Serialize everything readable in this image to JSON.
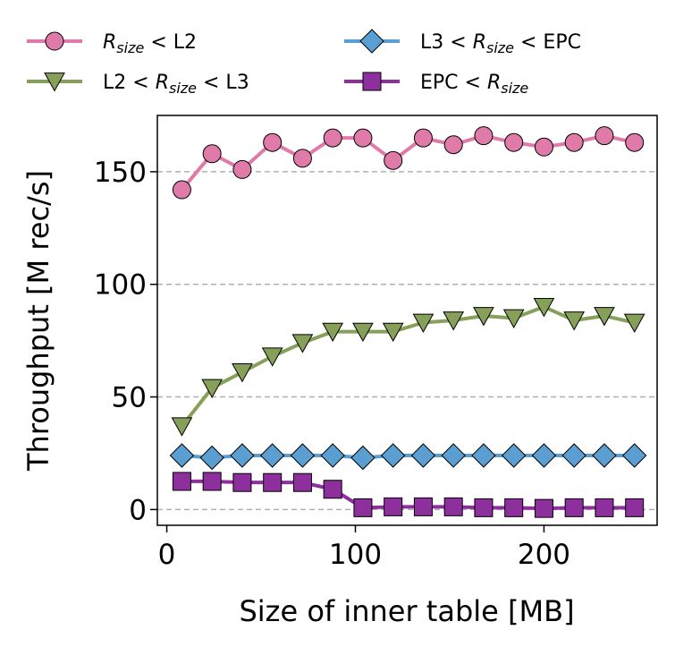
{
  "chart_data": {
    "type": "line",
    "xlabel": "Size of inner table [MB]",
    "ylabel": "Throughput [M rec/s]",
    "xlim": [
      -5,
      260
    ],
    "ylim": [
      -7,
      175
    ],
    "xticks": [
      0,
      100,
      200
    ],
    "yticks": [
      0,
      50,
      100,
      150
    ],
    "grid": "horizontal dashed at y ticks",
    "legend_position": "above plot, two columns",
    "x": [
      8,
      24,
      40,
      56,
      72,
      88,
      104,
      120,
      136,
      152,
      168,
      184,
      200,
      216,
      232,
      248
    ],
    "series": [
      {
        "name_parts": [
          {
            "text": "R",
            "style": "italic"
          },
          {
            "text": "size",
            "style": "italic-sub"
          },
          {
            "text": " < L2",
            "style": "normal"
          }
        ],
        "color": "#e07aa9",
        "marker": "circle",
        "values": [
          142,
          158,
          151,
          163,
          156,
          165,
          165,
          155,
          165,
          162,
          166,
          163,
          161,
          163,
          166,
          163
        ]
      },
      {
        "name_parts": [
          {
            "text": "L2 < ",
            "style": "normal"
          },
          {
            "text": "R",
            "style": "italic"
          },
          {
            "text": "size",
            "style": "italic-sub"
          },
          {
            "text": " < L3",
            "style": "normal"
          }
        ],
        "color": "#86a05a",
        "marker": "triangle-down",
        "values": [
          37,
          54,
          61,
          68,
          74,
          79,
          79,
          79,
          83,
          84,
          86,
          85,
          90,
          84,
          86,
          83
        ]
      },
      {
        "name_parts": [
          {
            "text": "L3 < ",
            "style": "normal"
          },
          {
            "text": "R",
            "style": "italic"
          },
          {
            "text": "size",
            "style": "italic-sub"
          },
          {
            "text": " < EPC",
            "style": "normal"
          }
        ],
        "color": "#5b9fd2",
        "marker": "diamond",
        "values": [
          24,
          23,
          24,
          24,
          24,
          24,
          23,
          24,
          24,
          24,
          24,
          24,
          24,
          24,
          24,
          24
        ]
      },
      {
        "name_parts": [
          {
            "text": "EPC < ",
            "style": "normal"
          },
          {
            "text": "R",
            "style": "italic"
          },
          {
            "text": "size",
            "style": "italic-sub"
          }
        ],
        "color": "#8e2f9e",
        "marker": "square",
        "values": [
          12.5,
          12.5,
          12,
          12,
          12,
          9,
          0.8,
          1.2,
          1.2,
          1.2,
          0.8,
          0.8,
          0.5,
          0.8,
          0.8,
          0.8
        ]
      }
    ]
  }
}
